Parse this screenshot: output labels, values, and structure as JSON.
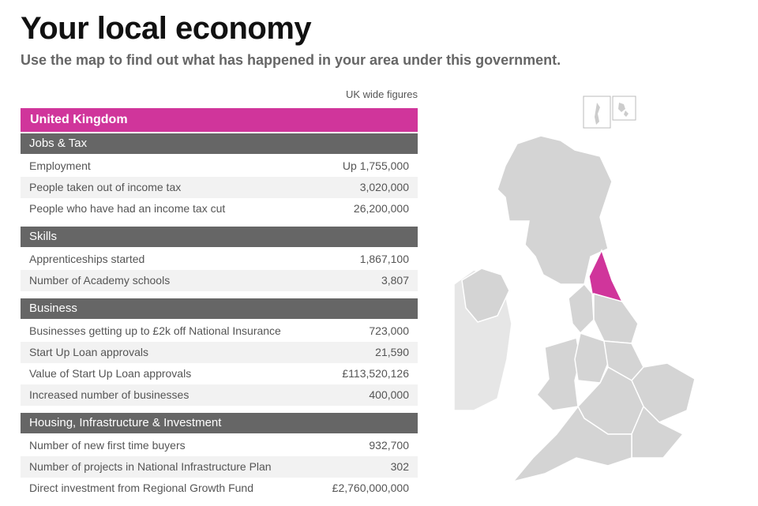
{
  "header": {
    "title": "Your local economy",
    "subtitle": "Use the map to find out what has happened in your area under this government."
  },
  "panel": {
    "note": "UK wide figures",
    "title": "United Kingdom",
    "sections": [
      {
        "title": "Jobs & Tax",
        "rows": [
          [
            "Employment",
            "Up 1,755,000"
          ],
          [
            "People taken out of income tax",
            "3,020,000"
          ],
          [
            "People who have had an income tax cut",
            "26,200,000"
          ]
        ]
      },
      {
        "title": "Skills",
        "rows": [
          [
            "Apprenticeships started",
            "1,867,100"
          ],
          [
            "Number of Academy schools",
            "3,807"
          ]
        ]
      },
      {
        "title": "Business",
        "rows": [
          [
            "Businesses getting up to £2k off National Insurance",
            "723,000"
          ],
          [
            "Start Up Loan approvals",
            "21,590"
          ],
          [
            "Value of Start Up Loan approvals",
            "£113,520,126"
          ],
          [
            "Increased number of businesses",
            "400,000"
          ]
        ]
      },
      {
        "title": "Housing, Infrastructure & Investment",
        "rows": [
          [
            "Number of new first time buyers",
            "932,700"
          ],
          [
            "Number of projects in National Infrastructure Plan",
            "302"
          ],
          [
            "Direct investment from Regional Growth Fund",
            "£2,760,000,000"
          ]
        ]
      }
    ]
  }
}
